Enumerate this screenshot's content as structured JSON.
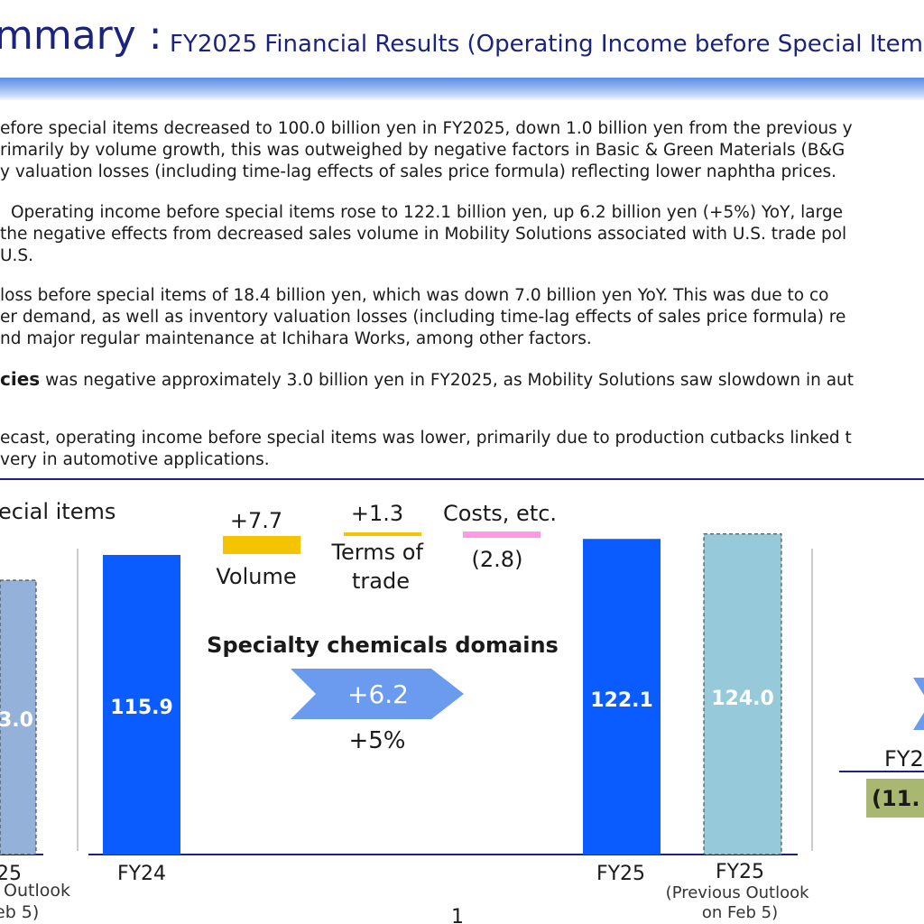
{
  "header": {
    "title": "mmary :",
    "subtitle": "FY2025 Financial Results (Operating Income before Special Items)"
  },
  "paragraphs": [
    {
      "lines": [
        "efore special items decreased to 100.0 billion yen in FY2025, down 1.0 billion yen from the previous y",
        "rimarily by volume growth, this was outweighed by negative factors in Basic & Green Materials (B&G",
        "y valuation losses (including time-lag effects of sales price formula) reflecting lower naphtha prices."
      ]
    },
    {
      "lines": [
        "Operating income before special items rose to 122.1 billion yen, up 6.2 billion yen (+5%) YoY, large",
        "the negative effects from decreased sales volume in Mobility Solutions associated with U.S. trade pol",
        "U.S."
      ]
    },
    {
      "lines": [
        "loss before special items of 18.4 billion yen, which was down 7.0 billion yen YoY. This was due to co",
        "er demand, as well as inventory valuation losses (including time-lag effects of sales price formula) re",
        "nd major regular maintenance at Ichihara Works, among other factors."
      ]
    },
    {
      "lines": [
        "was negative approximately 3.0 billion yen in FY2025, as Mobility Solutions saw slowdown in aut"
      ],
      "bold_lead": "cies"
    },
    {
      "lines": [
        "ecast, operating income before special items was lower, primarily due to production cutbacks linked t",
        "very in automotive applications."
      ]
    }
  ],
  "chart_data": {
    "type": "bar",
    "title": "ecial items",
    "domain_label": "Specialty chemicals domains",
    "change_value": "+6.2",
    "change_percent": "+5%",
    "categories": [
      "FY24",
      "FY25",
      "FY25"
    ],
    "category_notes": [
      "",
      "",
      "(Previous Outlook on Feb 5)"
    ],
    "values": [
      115.9,
      122.1,
      124.0
    ],
    "value_labels": [
      "115.9",
      "122.1",
      "124.0"
    ],
    "factors": [
      {
        "label": "Volume",
        "value": 7.7,
        "value_label": "+7.7",
        "color": "#f5c400"
      },
      {
        "label": "Terms of trade",
        "value": 1.3,
        "value_label": "+1.3",
        "color": "#f5c400"
      },
      {
        "label": "Costs, etc.",
        "value": -2.8,
        "value_label": "(2.8)",
        "color": "#ff99e6"
      }
    ],
    "ylim": [
      0,
      130
    ],
    "left_partial": {
      "value_label": "3.0",
      "category": "25",
      "note_line1": "Outlook",
      "note_line2": "eb 5)"
    },
    "right_partial": {
      "category": "FY2",
      "value_label": "(11."
    },
    "page_number": "1"
  },
  "colors": {
    "actual_bar": "#0a5cff",
    "outlook_bar": "#96c9d9",
    "left_outlook_bar": "#94b2d9",
    "arrow": "#6a9bef",
    "navy": "#1a237e",
    "olive": "#a8b870"
  }
}
